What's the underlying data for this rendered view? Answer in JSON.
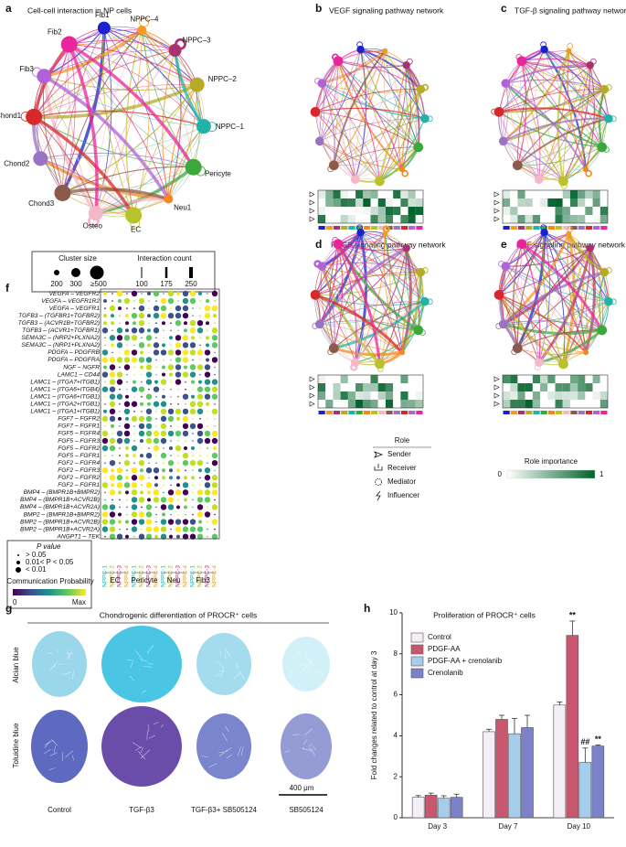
{
  "figure": {
    "panel_a": {
      "label": "a",
      "title": "Cell-cell interaction in NP cells",
      "nodes": [
        "Fib1",
        "NPPC–4",
        "NPPC–3",
        "NPPC–2",
        "NPPC–1",
        "Pericyte",
        "Neu1",
        "EC",
        "Osteo",
        "Chond3",
        "Chond2",
        "Chond1",
        "Fib3",
        "Fib2"
      ],
      "legend": {
        "size_title": "Cluster size",
        "sizes": [
          "200",
          "300",
          "≥500"
        ],
        "count_title": "Interaction count",
        "counts": [
          "100",
          "175",
          "250"
        ]
      }
    },
    "panel_b": {
      "label": "b",
      "title": "VEGF signaling pathway network"
    },
    "panel_c": {
      "label": "c",
      "title": "TGF-β signaling pathway network"
    },
    "panel_d": {
      "label": "d",
      "title": "PDGF signaling pathway network"
    },
    "panel_e": {
      "label": "e",
      "title": "FGF signaling pathway network"
    },
    "panel_f": {
      "label": "f",
      "pairs": [
        "VEGFA – VEGFR2",
        "VEGFA – VEGFR1R2",
        "VEGFA – VEGFR1",
        "TGFB3 – (TGFBR1+TGFBR2)",
        "TGFB3 – (ACVR1B+TGFBR2)",
        "TGFB3 – (ACVR1+TGFBR1)",
        "SEMA3C – (NRP2+PLXNA2)",
        "SEMA3C – (NRP1+PLXNA2)",
        "PDGFA – PDGFRB",
        "PDGFA – PDGFRA",
        "NGF – NGFR",
        "LAMC1 – CD44",
        "LAMC1 – (ITGA7+ITGB1)",
        "LAMC1 – (ITGA6+ITGB4)",
        "LAMC1 – (ITGA6+ITGB1)",
        "LAMC1 – (ITGA2+ITGB1)",
        "LAMC1 – (ITGA1+ITGB1)",
        "FGF7 – FGFR2",
        "FGF7 – FGFR1",
        "FGF5 – FGFR4",
        "FGF5 – FGFR3",
        "FGF5 – FGFR2",
        "FGF5 – FGFR1",
        "FGF2 – FGFR4",
        "FGF2 – FGFR3",
        "FGF2 – FGFR2",
        "FGF2 – FGFR1",
        "BMP4 – (BMPR1B+BMPR2)",
        "BMP4 – (BMPR1B+ACVR2B)",
        "BMP4 – (BMPR1B+ACVR2A)",
        "BMP2 – (BMPR1B+BMPR2)",
        "BMP2 – (BMPR1B+ACVR2B)",
        "BMP2 – (BMPR1B+ACVR2A)",
        "ANGPT1 – TEK"
      ],
      "columns": [
        "NPPC-1",
        "NPPC-2",
        "NPPC-3",
        "NPPC-4"
      ],
      "groups": [
        "EC",
        "Pericyte",
        "Neu",
        "Fib3"
      ],
      "legend": {
        "pvalue_title": "P value",
        "pvalues": [
          "> 0.05",
          "0.01< P < 0.05",
          "< 0.01"
        ],
        "prob_title": "Communication Probability",
        "prob_min": "0",
        "prob_max": "Max"
      }
    },
    "roles": {
      "title": "Role",
      "items": [
        "Sender",
        "Receiver",
        "Mediator",
        "Influencer"
      ],
      "importance_title": "Role importance",
      "min": "0",
      "max": "1"
    },
    "panel_g": {
      "label": "g",
      "title": "Chondrogenic differentiation of PROCR⁺ cells",
      "rows": [
        "Alcian blue",
        "Toluidine blue"
      ],
      "columns": [
        "Control",
        "TGF-β3",
        "TGF-β3+ SB505124",
        "SB505124"
      ],
      "scale": "400 μm"
    }
  },
  "chart_data": {
    "type": "bar",
    "label": "h",
    "title": "Proliferation of PROCR⁺ cells",
    "y_label": "Fold changes related to control at day 3",
    "categories": [
      "Day 3",
      "Day 7",
      "Day 10"
    ],
    "series": [
      {
        "name": "Control",
        "color": "#f4eef6",
        "values": [
          1.0,
          4.2,
          5.5
        ],
        "errors": [
          0.08,
          0.12,
          0.15
        ]
      },
      {
        "name": "PDGF-AA",
        "color": "#c8566e",
        "values": [
          1.1,
          4.8,
          8.9
        ],
        "errors": [
          0.1,
          0.2,
          0.7
        ]
      },
      {
        "name": "PDGF-AA + crenolanib",
        "color": "#a6cdea",
        "values": [
          0.95,
          4.1,
          2.7
        ],
        "errors": [
          0.12,
          0.75,
          0.7
        ]
      },
      {
        "name": "Crenolanib",
        "color": "#7b82c9",
        "values": [
          1.0,
          4.4,
          3.5
        ],
        "errors": [
          0.15,
          0.6,
          0.05
        ]
      }
    ],
    "annotations": [
      "**",
      "##",
      "**"
    ],
    "ylim": [
      0,
      10
    ],
    "yticks": [
      0,
      2,
      4,
      6,
      8,
      10
    ]
  }
}
